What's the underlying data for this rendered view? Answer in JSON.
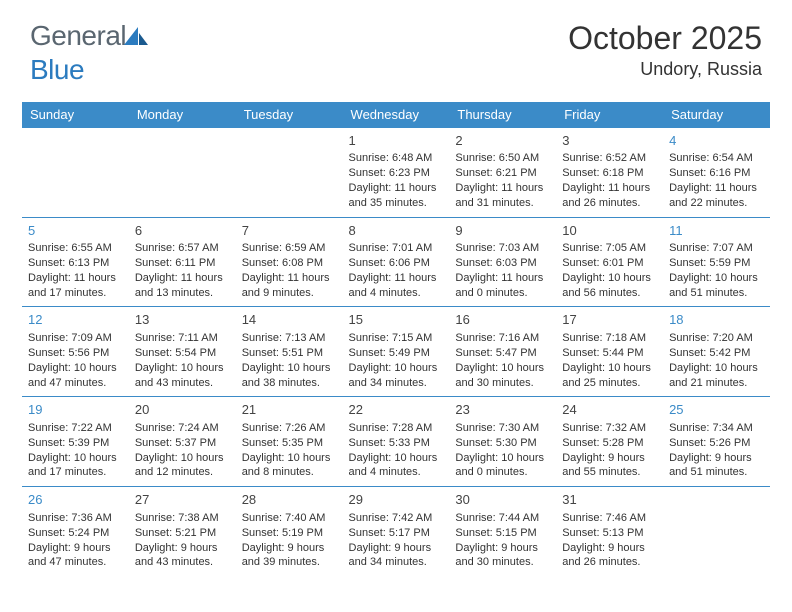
{
  "logo": {
    "text1": "General",
    "text2": "Blue",
    "color_gray": "#5a6670",
    "color_blue": "#2b7bbf"
  },
  "header": {
    "month_title": "October 2025",
    "location": "Undory, Russia"
  },
  "colors": {
    "header_bg": "#3b8bc8",
    "header_text": "#ffffff",
    "row_border": "#3b8bc8",
    "weekend_num": "#3b8bc8",
    "body_text": "#333333",
    "background": "#ffffff"
  },
  "day_headers": [
    "Sunday",
    "Monday",
    "Tuesday",
    "Wednesday",
    "Thursday",
    "Friday",
    "Saturday"
  ],
  "weeks": [
    [
      {
        "n": "",
        "lines": []
      },
      {
        "n": "",
        "lines": []
      },
      {
        "n": "",
        "lines": []
      },
      {
        "n": "1",
        "lines": [
          "Sunrise: 6:48 AM",
          "Sunset: 6:23 PM",
          "Daylight: 11 hours",
          "and 35 minutes."
        ]
      },
      {
        "n": "2",
        "lines": [
          "Sunrise: 6:50 AM",
          "Sunset: 6:21 PM",
          "Daylight: 11 hours",
          "and 31 minutes."
        ]
      },
      {
        "n": "3",
        "lines": [
          "Sunrise: 6:52 AM",
          "Sunset: 6:18 PM",
          "Daylight: 11 hours",
          "and 26 minutes."
        ]
      },
      {
        "n": "4",
        "lines": [
          "Sunrise: 6:54 AM",
          "Sunset: 6:16 PM",
          "Daylight: 11 hours",
          "and 22 minutes."
        ]
      }
    ],
    [
      {
        "n": "5",
        "lines": [
          "Sunrise: 6:55 AM",
          "Sunset: 6:13 PM",
          "Daylight: 11 hours",
          "and 17 minutes."
        ]
      },
      {
        "n": "6",
        "lines": [
          "Sunrise: 6:57 AM",
          "Sunset: 6:11 PM",
          "Daylight: 11 hours",
          "and 13 minutes."
        ]
      },
      {
        "n": "7",
        "lines": [
          "Sunrise: 6:59 AM",
          "Sunset: 6:08 PM",
          "Daylight: 11 hours",
          "and 9 minutes."
        ]
      },
      {
        "n": "8",
        "lines": [
          "Sunrise: 7:01 AM",
          "Sunset: 6:06 PM",
          "Daylight: 11 hours",
          "and 4 minutes."
        ]
      },
      {
        "n": "9",
        "lines": [
          "Sunrise: 7:03 AM",
          "Sunset: 6:03 PM",
          "Daylight: 11 hours",
          "and 0 minutes."
        ]
      },
      {
        "n": "10",
        "lines": [
          "Sunrise: 7:05 AM",
          "Sunset: 6:01 PM",
          "Daylight: 10 hours",
          "and 56 minutes."
        ]
      },
      {
        "n": "11",
        "lines": [
          "Sunrise: 7:07 AM",
          "Sunset: 5:59 PM",
          "Daylight: 10 hours",
          "and 51 minutes."
        ]
      }
    ],
    [
      {
        "n": "12",
        "lines": [
          "Sunrise: 7:09 AM",
          "Sunset: 5:56 PM",
          "Daylight: 10 hours",
          "and 47 minutes."
        ]
      },
      {
        "n": "13",
        "lines": [
          "Sunrise: 7:11 AM",
          "Sunset: 5:54 PM",
          "Daylight: 10 hours",
          "and 43 minutes."
        ]
      },
      {
        "n": "14",
        "lines": [
          "Sunrise: 7:13 AM",
          "Sunset: 5:51 PM",
          "Daylight: 10 hours",
          "and 38 minutes."
        ]
      },
      {
        "n": "15",
        "lines": [
          "Sunrise: 7:15 AM",
          "Sunset: 5:49 PM",
          "Daylight: 10 hours",
          "and 34 minutes."
        ]
      },
      {
        "n": "16",
        "lines": [
          "Sunrise: 7:16 AM",
          "Sunset: 5:47 PM",
          "Daylight: 10 hours",
          "and 30 minutes."
        ]
      },
      {
        "n": "17",
        "lines": [
          "Sunrise: 7:18 AM",
          "Sunset: 5:44 PM",
          "Daylight: 10 hours",
          "and 25 minutes."
        ]
      },
      {
        "n": "18",
        "lines": [
          "Sunrise: 7:20 AM",
          "Sunset: 5:42 PM",
          "Daylight: 10 hours",
          "and 21 minutes."
        ]
      }
    ],
    [
      {
        "n": "19",
        "lines": [
          "Sunrise: 7:22 AM",
          "Sunset: 5:39 PM",
          "Daylight: 10 hours",
          "and 17 minutes."
        ]
      },
      {
        "n": "20",
        "lines": [
          "Sunrise: 7:24 AM",
          "Sunset: 5:37 PM",
          "Daylight: 10 hours",
          "and 12 minutes."
        ]
      },
      {
        "n": "21",
        "lines": [
          "Sunrise: 7:26 AM",
          "Sunset: 5:35 PM",
          "Daylight: 10 hours",
          "and 8 minutes."
        ]
      },
      {
        "n": "22",
        "lines": [
          "Sunrise: 7:28 AM",
          "Sunset: 5:33 PM",
          "Daylight: 10 hours",
          "and 4 minutes."
        ]
      },
      {
        "n": "23",
        "lines": [
          "Sunrise: 7:30 AM",
          "Sunset: 5:30 PM",
          "Daylight: 10 hours",
          "and 0 minutes."
        ]
      },
      {
        "n": "24",
        "lines": [
          "Sunrise: 7:32 AM",
          "Sunset: 5:28 PM",
          "Daylight: 9 hours",
          "and 55 minutes."
        ]
      },
      {
        "n": "25",
        "lines": [
          "Sunrise: 7:34 AM",
          "Sunset: 5:26 PM",
          "Daylight: 9 hours",
          "and 51 minutes."
        ]
      }
    ],
    [
      {
        "n": "26",
        "lines": [
          "Sunrise: 7:36 AM",
          "Sunset: 5:24 PM",
          "Daylight: 9 hours",
          "and 47 minutes."
        ]
      },
      {
        "n": "27",
        "lines": [
          "Sunrise: 7:38 AM",
          "Sunset: 5:21 PM",
          "Daylight: 9 hours",
          "and 43 minutes."
        ]
      },
      {
        "n": "28",
        "lines": [
          "Sunrise: 7:40 AM",
          "Sunset: 5:19 PM",
          "Daylight: 9 hours",
          "and 39 minutes."
        ]
      },
      {
        "n": "29",
        "lines": [
          "Sunrise: 7:42 AM",
          "Sunset: 5:17 PM",
          "Daylight: 9 hours",
          "and 34 minutes."
        ]
      },
      {
        "n": "30",
        "lines": [
          "Sunrise: 7:44 AM",
          "Sunset: 5:15 PM",
          "Daylight: 9 hours",
          "and 30 minutes."
        ]
      },
      {
        "n": "31",
        "lines": [
          "Sunrise: 7:46 AM",
          "Sunset: 5:13 PM",
          "Daylight: 9 hours",
          "and 26 minutes."
        ]
      },
      {
        "n": "",
        "lines": []
      }
    ]
  ]
}
